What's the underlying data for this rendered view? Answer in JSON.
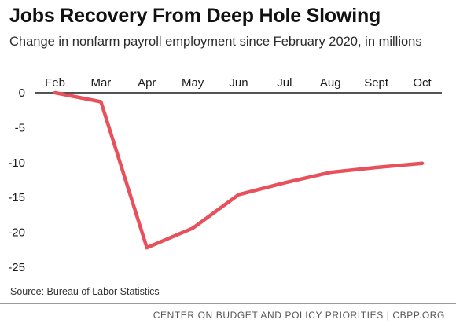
{
  "header": {
    "title": "Jobs Recovery From Deep Hole Slowing",
    "subtitle": "Change in nonfarm payroll employment since February 2020, in millions"
  },
  "source": "Source: Bureau of Labor Statistics",
  "footer": {
    "credit": "CENTER ON BUDGET AND POLICY PRIORITIES | CBPP.ORG"
  },
  "colors": {
    "line": "#e8505b",
    "axis": "#1a1a1a",
    "gridline": "#d9d9d9"
  },
  "chart_data": {
    "type": "line",
    "title": "Jobs Recovery From Deep Hole Slowing",
    "subtitle": "Change in nonfarm payroll employment since February 2020, in millions",
    "xlabel": "",
    "ylabel": "",
    "categories": [
      "Feb",
      "Mar",
      "Apr",
      "May",
      "Jun",
      "Jul",
      "Aug",
      "Sept",
      "Oct"
    ],
    "series": [
      {
        "values": [
          0,
          -1.3,
          -22.2,
          -19.4,
          -14.6,
          -12.9,
          -11.4,
          -10.7,
          -10.1
        ]
      }
    ],
    "ylim": [
      -25,
      0
    ],
    "yticks": [
      0,
      -5,
      -10,
      -15,
      -20,
      -25
    ],
    "grid": false,
    "legend": "none",
    "x_axis_position": "top"
  }
}
